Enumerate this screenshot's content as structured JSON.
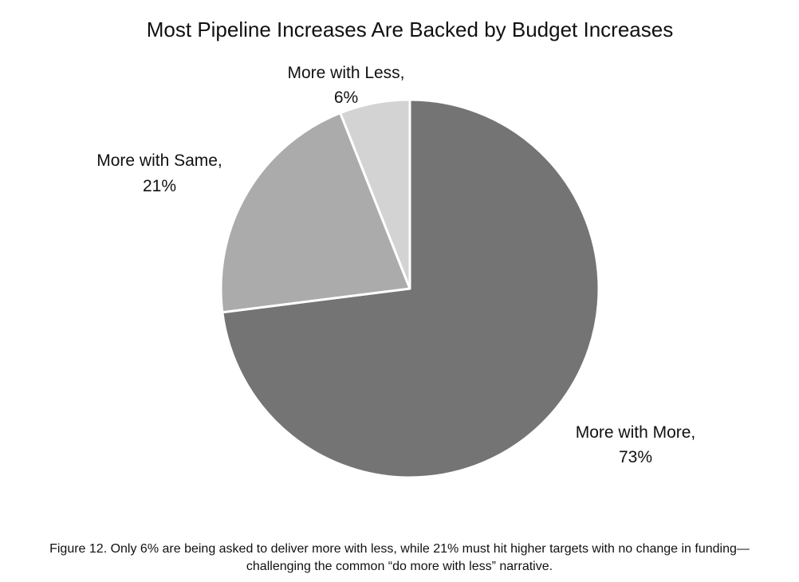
{
  "chart_data": {
    "type": "pie",
    "title": "Most Pipeline Increases Are Backed by Budget Increases",
    "start_angle_deg": 0,
    "direction": "clockwise",
    "slices": [
      {
        "label": "More with More,",
        "value_label": "73%",
        "value": 73,
        "color": "#747474"
      },
      {
        "label": "More with Same,",
        "value_label": "21%",
        "value": 21,
        "color": "#ababab"
      },
      {
        "label": "More with Less,",
        "value_label": "6%",
        "value": 6,
        "color": "#d3d3d3"
      }
    ],
    "border_color": "#ffffff"
  },
  "caption": {
    "line1": "Figure 12. Only 6% are being asked to deliver more with less, while 21% must hit higher targets with no change in funding—",
    "line2": "challenging the common “do more with less” narrative."
  }
}
